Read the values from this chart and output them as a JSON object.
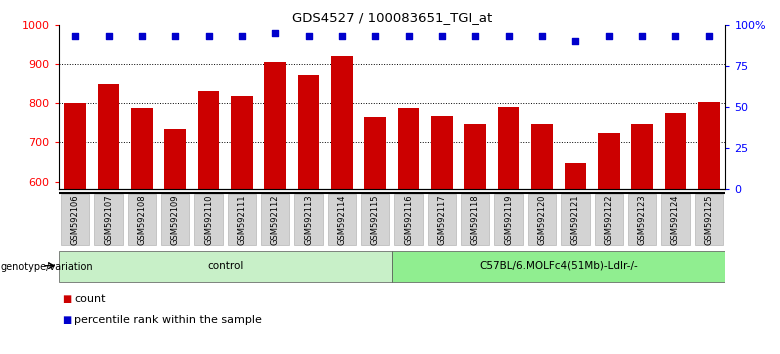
{
  "title": "GDS4527 / 100083651_TGI_at",
  "samples": [
    "GSM592106",
    "GSM592107",
    "GSM592108",
    "GSM592109",
    "GSM592110",
    "GSM592111",
    "GSM592112",
    "GSM592113",
    "GSM592114",
    "GSM592115",
    "GSM592116",
    "GSM592117",
    "GSM592118",
    "GSM592119",
    "GSM592120",
    "GSM592121",
    "GSM592122",
    "GSM592123",
    "GSM592124",
    "GSM592125"
  ],
  "counts": [
    800,
    848,
    788,
    733,
    830,
    818,
    905,
    873,
    920,
    765,
    788,
    767,
    748,
    790,
    748,
    648,
    725,
    748,
    775,
    803
  ],
  "percentile_ranks": [
    93,
    93,
    93,
    93,
    93,
    93,
    95,
    93,
    93,
    93,
    93,
    93,
    93,
    93,
    93,
    90,
    93,
    93,
    93,
    93
  ],
  "groups": [
    {
      "label": "control",
      "start": 0,
      "end": 9,
      "color": "#c8f0c8"
    },
    {
      "label": "C57BL/6.MOLFc4(51Mb)-Ldlr-/-",
      "start": 10,
      "end": 19,
      "color": "#90ee90"
    }
  ],
  "bar_color": "#cc0000",
  "dot_color": "#0000cc",
  "ylim_left": [
    580,
    1000
  ],
  "ylim_right": [
    0,
    100
  ],
  "yticks_left": [
    600,
    700,
    800,
    900,
    1000
  ],
  "yticks_right": [
    0,
    25,
    50,
    75,
    100
  ],
  "grid_values": [
    700,
    800,
    900
  ],
  "background_color": "#ffffff",
  "tick_label_bg": "#d3d3d3",
  "genotype_label": "genotype/variation",
  "legend_count_label": "count",
  "legend_percentile_label": "percentile rank within the sample"
}
